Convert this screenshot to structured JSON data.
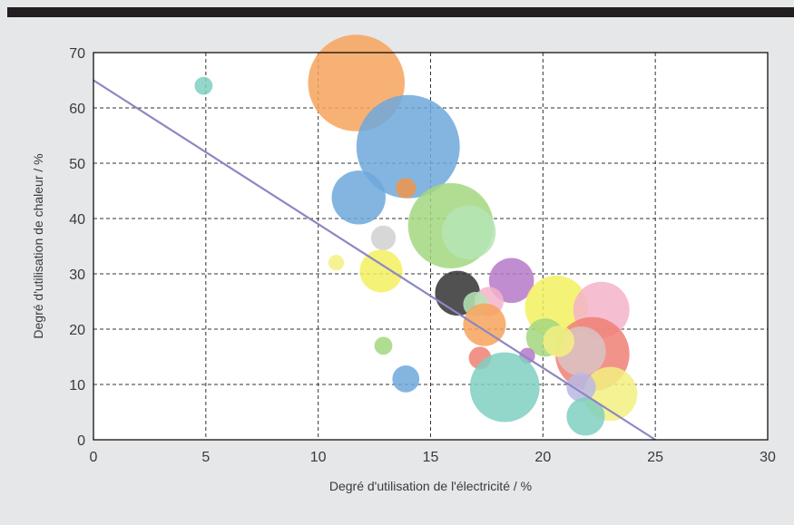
{
  "chart_data": {
    "type": "scatter",
    "title": "",
    "xlabel": "Degré d'utilisation de l'électricité / %",
    "ylabel": "Degré d'utilisation de chaleur / %",
    "xlim": [
      0,
      30
    ],
    "ylim": [
      0,
      70
    ],
    "xticks": [
      "0",
      "5",
      "10",
      "15",
      "20",
      "25",
      "30"
    ],
    "yticks": [
      "0",
      "10",
      "20",
      "30",
      "40",
      "50",
      "60",
      "70"
    ],
    "grid": true,
    "bubbles": [
      {
        "x": 4.9,
        "y": 64,
        "size": 0.8,
        "color": "#7fd0c0"
      },
      {
        "x": 11.7,
        "y": 64.5,
        "size": 4.3,
        "color": "#f7a35c"
      },
      {
        "x": 14.0,
        "y": 53,
        "size": 4.6,
        "color": "#6fa8dc"
      },
      {
        "x": 11.8,
        "y": 43.8,
        "size": 2.4,
        "color": "#6fa8dc"
      },
      {
        "x": 13.9,
        "y": 45.5,
        "size": 0.9,
        "color": "#f0954a"
      },
      {
        "x": 15.9,
        "y": 38.7,
        "size": 3.8,
        "color": "#a3d77f"
      },
      {
        "x": 16.7,
        "y": 37.5,
        "size": 2.4,
        "color": "#b5e5b5"
      },
      {
        "x": 12.9,
        "y": 36.5,
        "size": 1.1,
        "color": "#d0d0d0"
      },
      {
        "x": 10.8,
        "y": 32.0,
        "size": 0.7,
        "color": "#f3f080"
      },
      {
        "x": 12.8,
        "y": 30.5,
        "size": 1.9,
        "color": "#f3f060"
      },
      {
        "x": 16.2,
        "y": 26.5,
        "size": 2.0,
        "color": "#333333"
      },
      {
        "x": 18.6,
        "y": 28.8,
        "size": 2.0,
        "color": "#b679c9"
      },
      {
        "x": 17.6,
        "y": 25.0,
        "size": 1.3,
        "color": "#f4b3c9"
      },
      {
        "x": 17.0,
        "y": 24.5,
        "size": 1.1,
        "color": "#b5e5b5"
      },
      {
        "x": 17.4,
        "y": 20.8,
        "size": 1.9,
        "color": "#f7a35c"
      },
      {
        "x": 20.6,
        "y": 24.0,
        "size": 2.8,
        "color": "#f3f060"
      },
      {
        "x": 22.6,
        "y": 23.5,
        "size": 2.5,
        "color": "#f4b3c9"
      },
      {
        "x": 22.2,
        "y": 15.5,
        "size": 3.3,
        "color": "#f08076"
      },
      {
        "x": 21.7,
        "y": 16.0,
        "size": 2.2,
        "color": "#d9c3c3"
      },
      {
        "x": 20.1,
        "y": 18.5,
        "size": 1.7,
        "color": "#a3d77f"
      },
      {
        "x": 20.7,
        "y": 17.8,
        "size": 1.4,
        "color": "#f3f080"
      },
      {
        "x": 19.3,
        "y": 15.2,
        "size": 0.7,
        "color": "#b679c9"
      },
      {
        "x": 17.2,
        "y": 14.8,
        "size": 1.0,
        "color": "#f08076"
      },
      {
        "x": 12.9,
        "y": 17.0,
        "size": 0.8,
        "color": "#a3d77f"
      },
      {
        "x": 13.9,
        "y": 11.0,
        "size": 1.2,
        "color": "#6fa8dc"
      },
      {
        "x": 18.3,
        "y": 9.5,
        "size": 3.1,
        "color": "#7fd0c0"
      },
      {
        "x": 23.0,
        "y": 8.3,
        "size": 2.4,
        "color": "#f3f080"
      },
      {
        "x": 21.7,
        "y": 9.5,
        "size": 1.3,
        "color": "#b9b9e5"
      },
      {
        "x": 21.9,
        "y": 4.2,
        "size": 1.7,
        "color": "#7fd0c0"
      }
    ],
    "trendline": {
      "x": [
        0,
        25
      ],
      "y": [
        65,
        0
      ],
      "color": "#8e87c2"
    }
  }
}
